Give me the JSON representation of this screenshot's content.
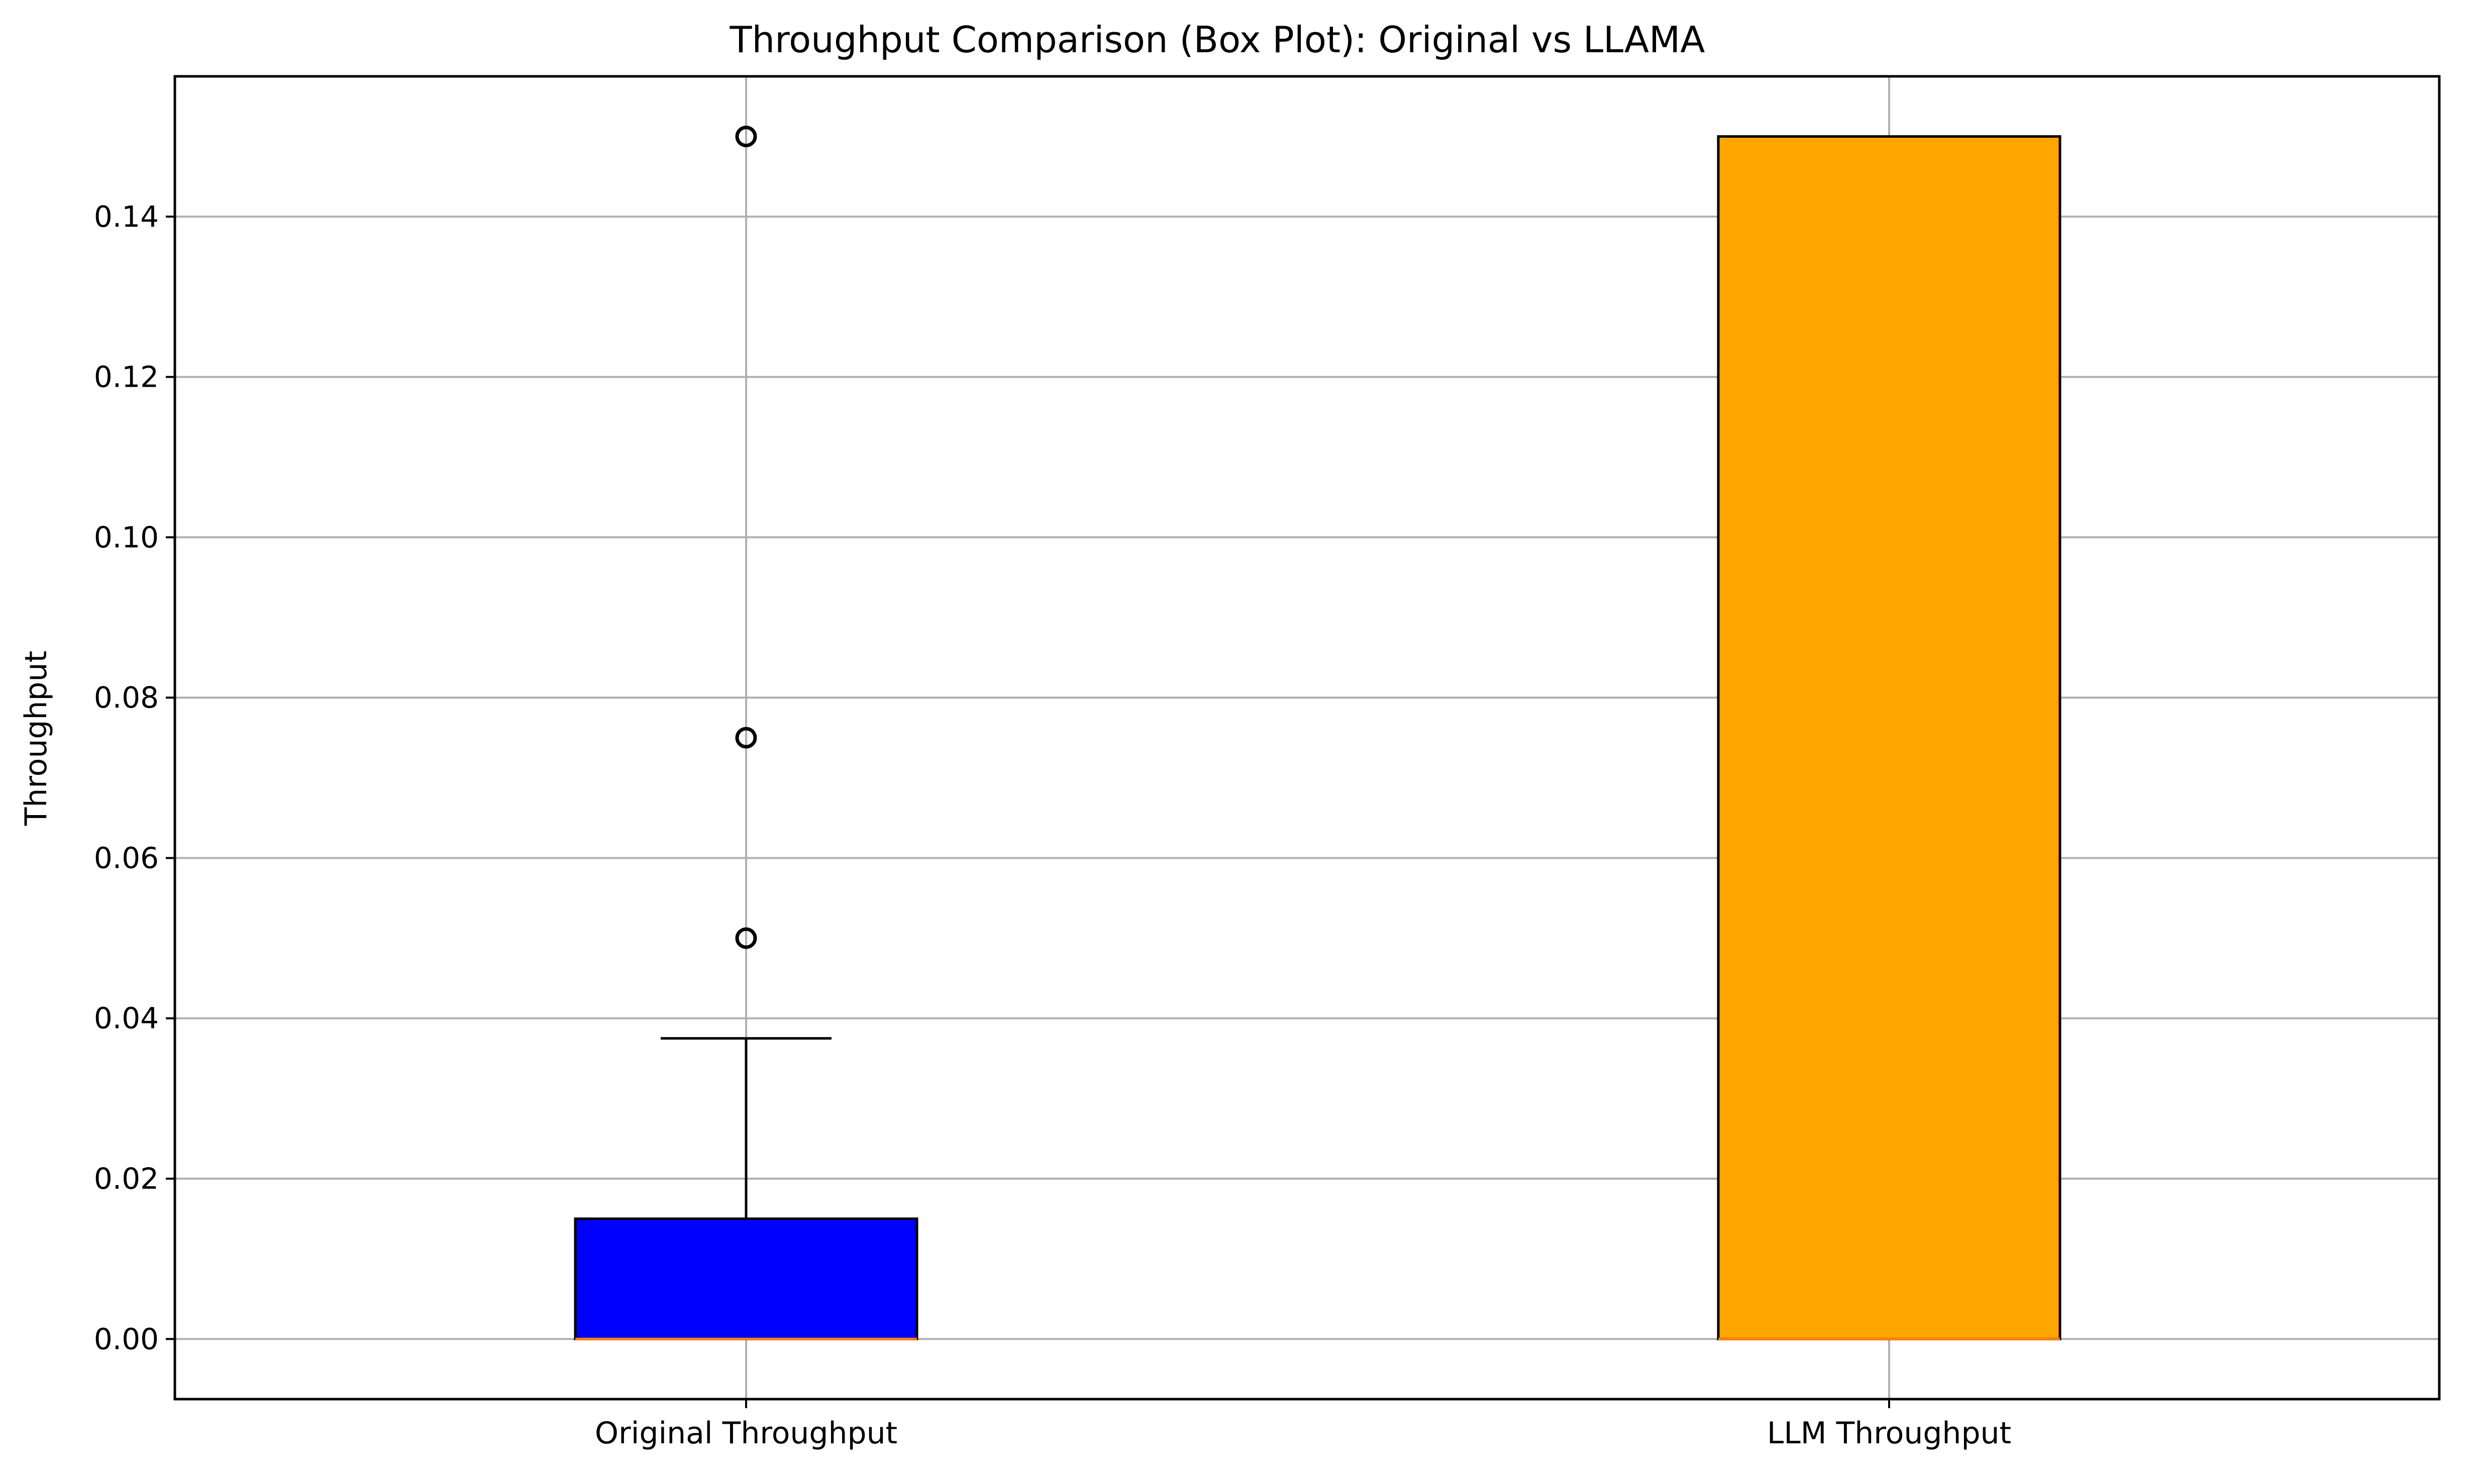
{
  "chart_data": {
    "type": "box",
    "title": "Throughput Comparison (Box Plot): Original vs LLAMA",
    "xlabel": "",
    "ylabel": "Throughput",
    "categories": [
      "Original Throughput",
      "LLM Throughput"
    ],
    "ylim": [
      -0.0075,
      0.1575
    ],
    "yticks": [
      0.0,
      0.02,
      0.04,
      0.06,
      0.08,
      0.1,
      0.12,
      0.14
    ],
    "ytick_labels": [
      "0.00",
      "0.02",
      "0.04",
      "0.06",
      "0.08",
      "0.10",
      "0.12",
      "0.14"
    ],
    "grid": true,
    "boxes": [
      {
        "category": "Original Throughput",
        "whisker_low": 0.0,
        "q1": 0.0,
        "median": 0.0,
        "q3": 0.015,
        "whisker_high": 0.0375,
        "outliers": [
          0.05,
          0.075,
          0.15
        ],
        "color": "#0000ff"
      },
      {
        "category": "LLM Throughput",
        "whisker_low": 0.0,
        "q1": 0.0,
        "median": 0.0,
        "q3": 0.15,
        "whisker_high": 0.15,
        "outliers": [],
        "color": "#ffa500"
      }
    ],
    "median_color": "#ff7f0e",
    "grid_color": "#b0b0b0"
  }
}
